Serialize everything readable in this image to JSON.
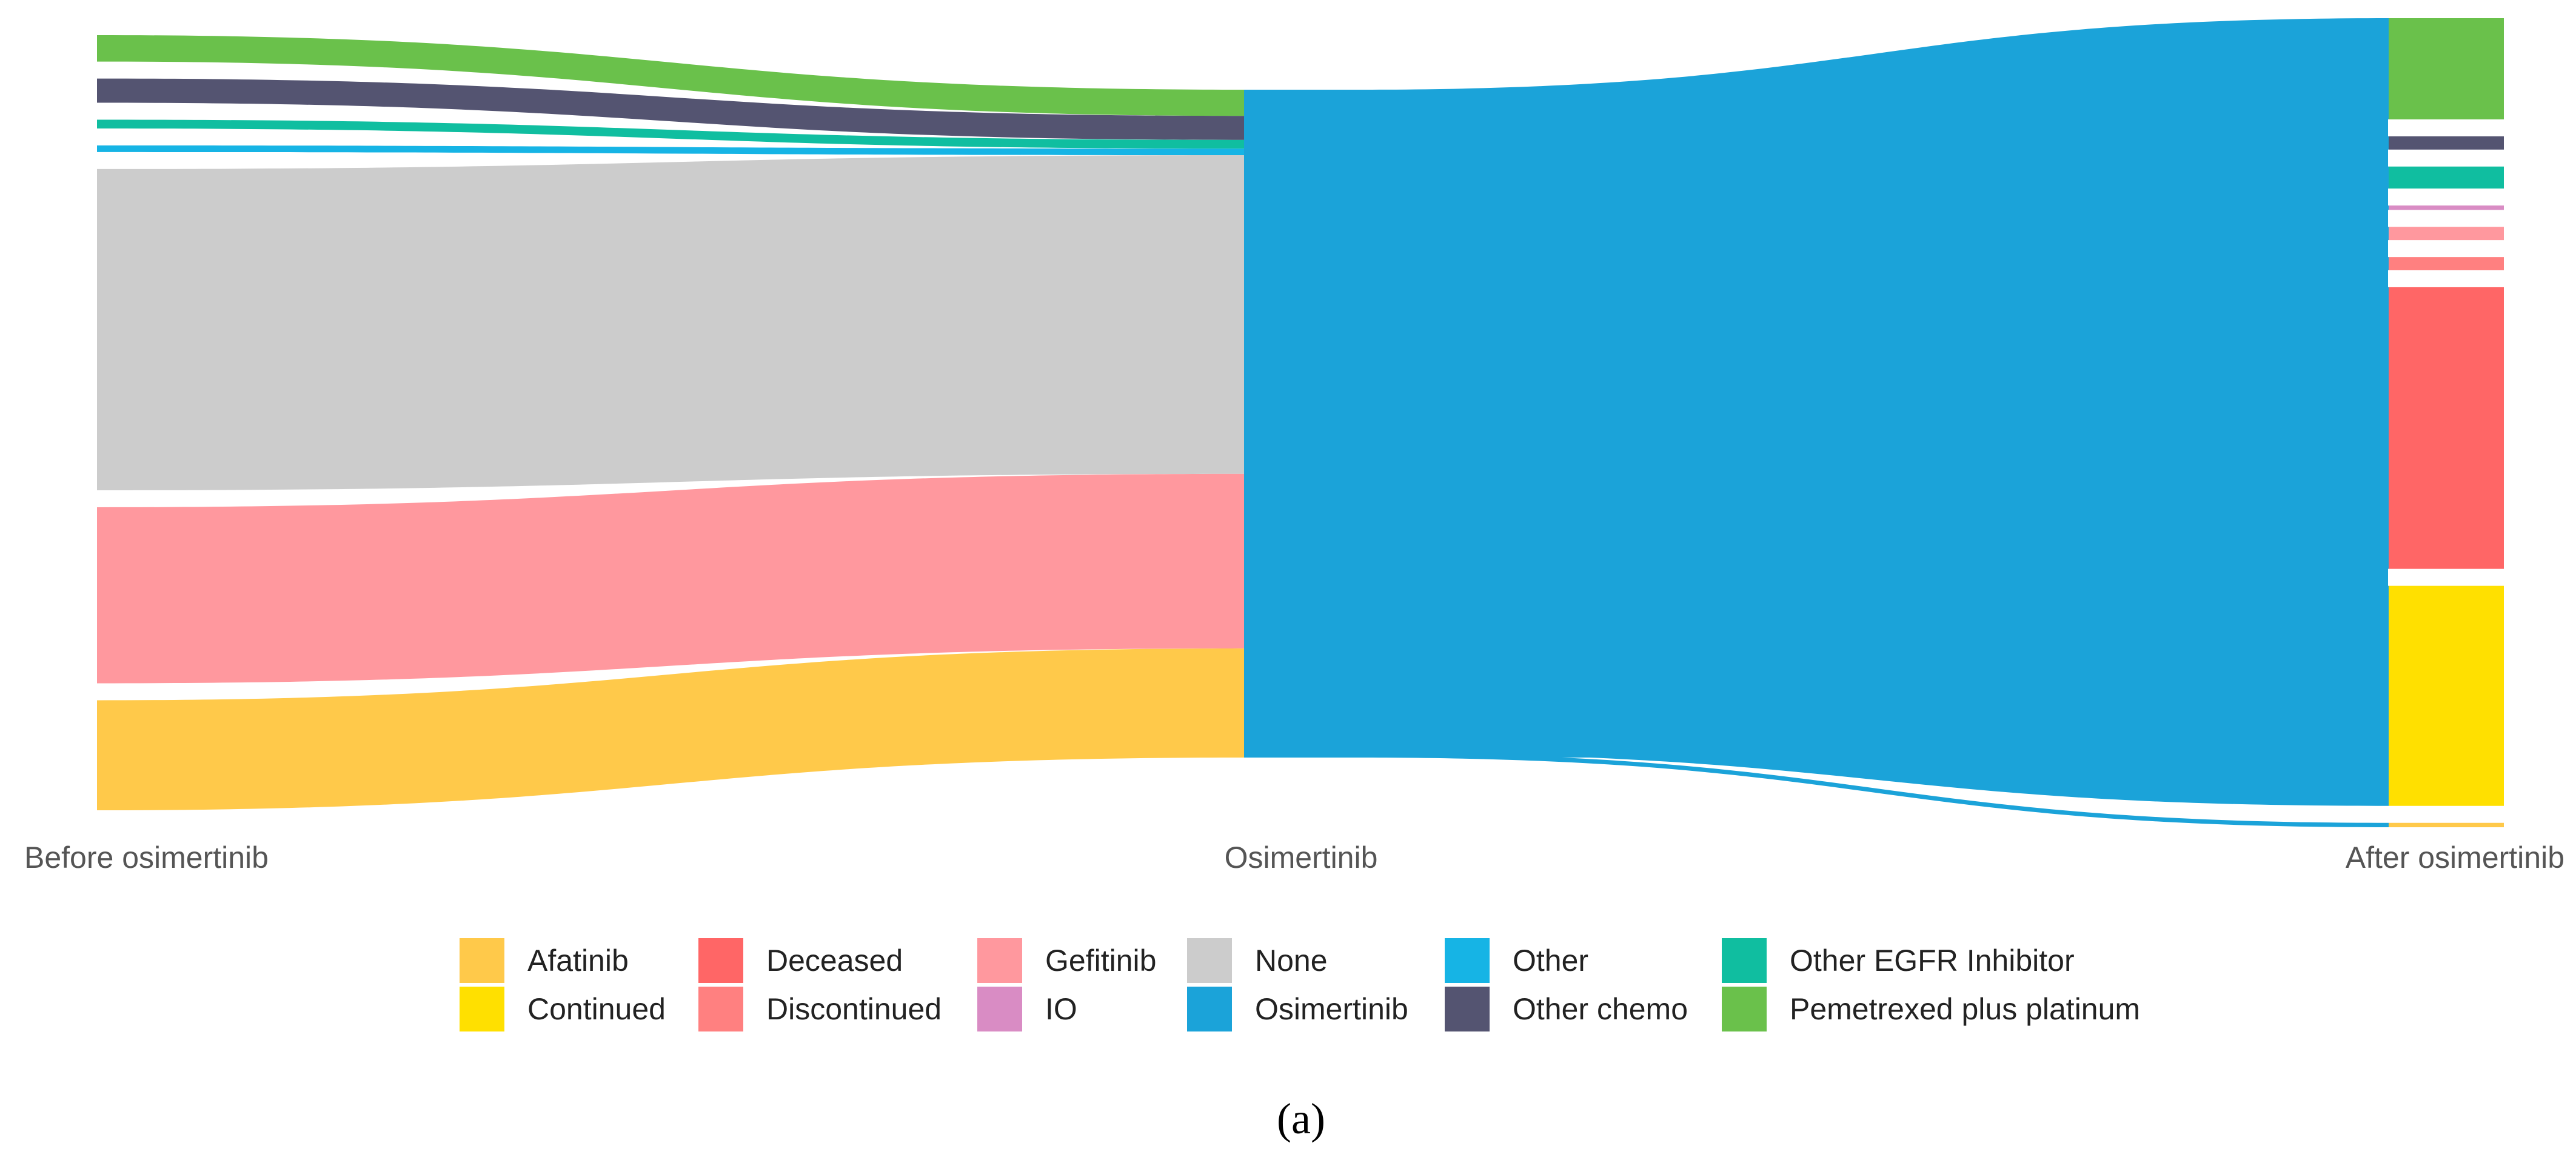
{
  "chart_data": {
    "type": "sankey",
    "title": "",
    "panel_label": "(a)",
    "stages": [
      "Before osimertinib",
      "Osimertinib",
      "After osimertinib"
    ],
    "colors": {
      "Afatinib": "#FFC94A",
      "Continued": "#FFE000",
      "Deceased": "#FF6666",
      "Discontinued": "#FF8080",
      "Gefitinib": "#FF989E",
      "IO": "#D98CC4",
      "None": "#CCCCCC",
      "Osimertinib": "#1BA3D9",
      "Other": "#16B4E5",
      "Other chemo": "#545471",
      "Other EGFR Inhibitor": "#10BEA0",
      "Pemetrexed plus platinum": "#6AC14B"
    },
    "before_nodes": [
      {
        "name": "Pemetrexed plus platinum",
        "value": 6
      },
      {
        "name": "Other chemo",
        "value": 5.5
      },
      {
        "name": "Other EGFR Inhibitor",
        "value": 2
      },
      {
        "name": "Other",
        "value": 1.5
      },
      {
        "name": "None",
        "value": 73
      },
      {
        "name": "Gefitinib",
        "value": 40
      },
      {
        "name": "Afatinib",
        "value": 25
      }
    ],
    "after_nodes": [
      {
        "name": "Pemetrexed plus platinum",
        "value": 23
      },
      {
        "name": "Other chemo",
        "value": 3
      },
      {
        "name": "Other EGFR Inhibitor",
        "value": 5
      },
      {
        "name": "IO",
        "value": 1
      },
      {
        "name": "Gefitinib",
        "value": 3
      },
      {
        "name": "Discontinued",
        "value": 3
      },
      {
        "name": "Deceased",
        "value": 64
      },
      {
        "name": "Continued",
        "value": 50
      },
      {
        "name": "Afatinib",
        "value": 1
      }
    ],
    "legend": [
      "Afatinib",
      "Continued",
      "Deceased",
      "Discontinued",
      "Gefitinib",
      "IO",
      "None",
      "Osimertinib",
      "Other",
      "Other chemo",
      "Other EGFR Inhibitor",
      "Pemetrexed plus platinum"
    ]
  }
}
